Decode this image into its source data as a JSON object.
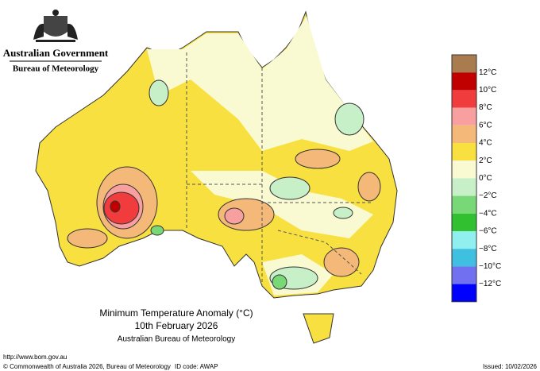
{
  "header": {
    "government": "Australian Government",
    "agency": "Bureau of Meteorology"
  },
  "title": {
    "line1": "Minimum Temperature Anomaly (°C)",
    "line2": "10th February 2026",
    "line3": "Australian Bureau of Meteorology"
  },
  "legend": {
    "labels": [
      "12°C",
      "10°C",
      "8°C",
      "6°C",
      "4°C",
      "2°C",
      "0°C",
      "−2°C",
      "−4°C",
      "−6°C",
      "−8°C",
      "−10°C",
      "−12°C"
    ],
    "colors": [
      "#a97c50",
      "#c00000",
      "#f03c3c",
      "#f8a0a0",
      "#f4b878",
      "#f8e040",
      "#fafad2",
      "#c8f0c8",
      "#78d878",
      "#30c030",
      "#90f0f0",
      "#40c0e0",
      "#7070f0",
      "#0000ff"
    ]
  },
  "footer": {
    "url": "http://www.bom.gov.au",
    "copyright": "© Commonwealth of Australia 2026, Bureau of Meteorology",
    "id": "ID code: AWAP",
    "issued": "Issued: 10/02/2026"
  }
}
